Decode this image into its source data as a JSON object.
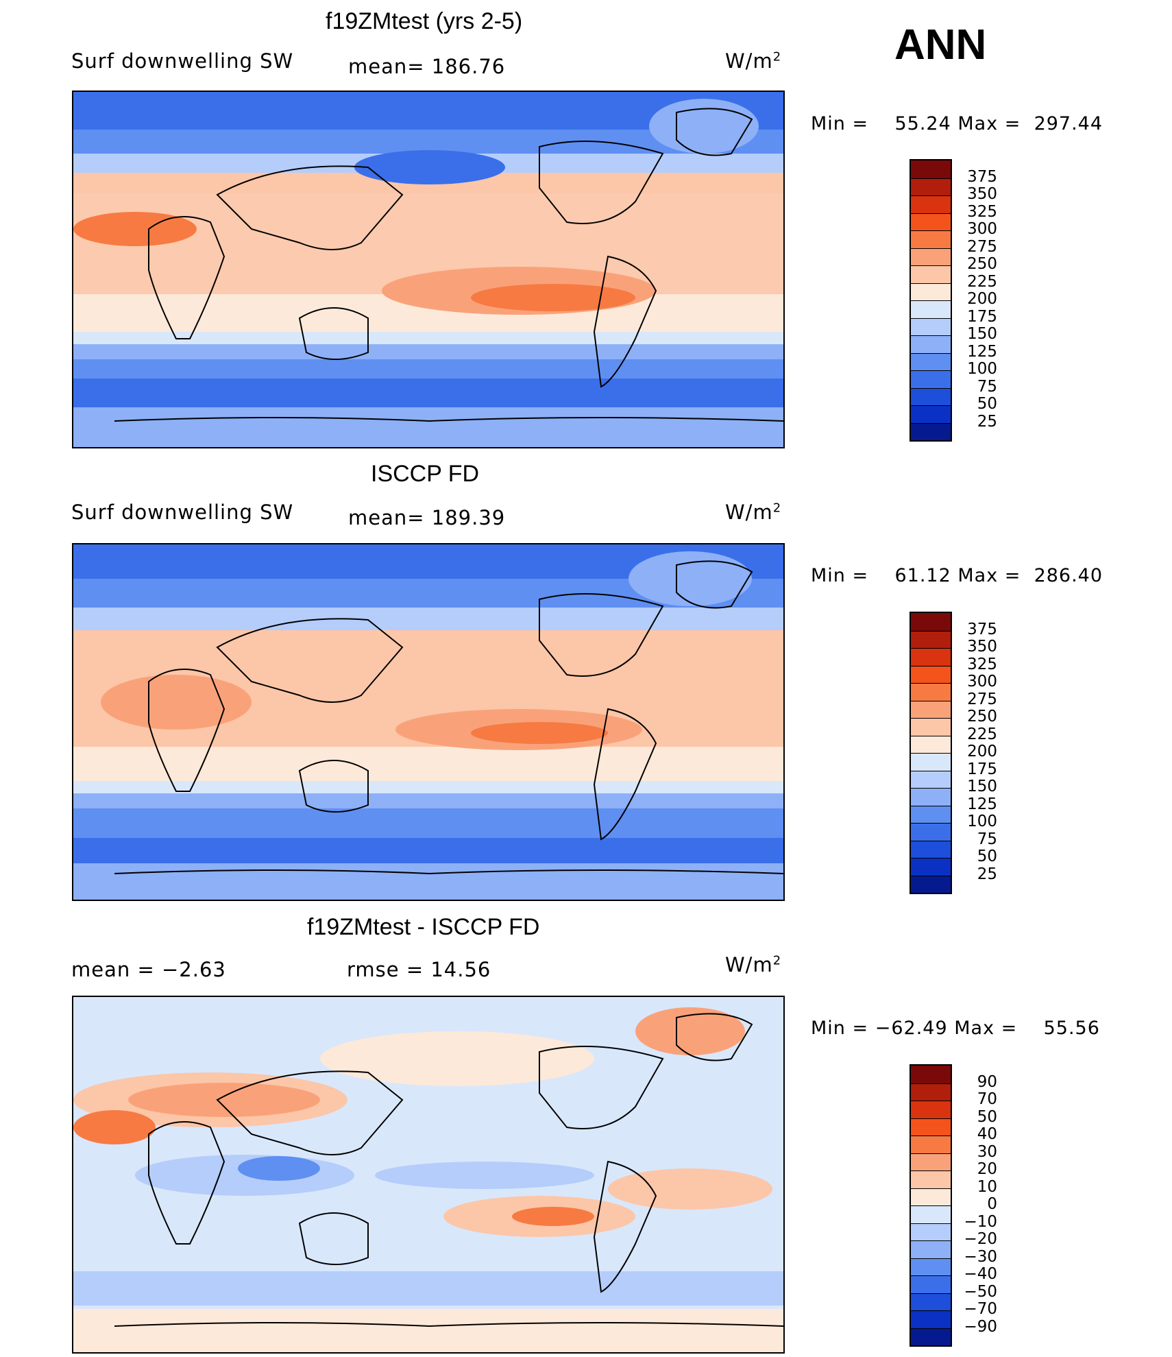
{
  "season": "ANN",
  "units": "W/m",
  "units_sup": "2",
  "panels": [
    {
      "title": "f19ZMtest (yrs 2-5)",
      "left_label": "Surf  downwelling  SW",
      "stat_label": "mean=  186.76",
      "min_label": "Min  =",
      "min_value": "55.24",
      "max_label": "Max  =",
      "max_value": "297.44"
    },
    {
      "title": "ISCCP FD",
      "left_label": "Surf  downwelling  SW",
      "stat_label": "mean=  189.39",
      "min_label": "Min  =",
      "min_value": "61.12",
      "max_label": "Max  =",
      "max_value": "286.40"
    },
    {
      "title": "f19ZMtest - ISCCP FD",
      "left_label": "mean  =     −2.63",
      "stat_label": "rmse  =     14.56",
      "min_label": "Min  =",
      "min_value": "−62.49",
      "max_label": "Max  =",
      "max_value": "55.56"
    }
  ],
  "colorbar_abs": {
    "labels": [
      "375",
      "350",
      "325",
      "300",
      "275",
      "250",
      "225",
      "200",
      "175",
      "150",
      "125",
      "100",
      "75",
      "50",
      "25"
    ],
    "colors": [
      "#7a0a0a",
      "#b11f0c",
      "#d9330f",
      "#f4541c",
      "#f77a43",
      "#f9a27a",
      "#fcc6a8",
      "#fde9d9",
      "#d9e7fb",
      "#b4cdfa",
      "#8db0f7",
      "#5f8ff1",
      "#3a6fe9",
      "#1d4fdb",
      "#0b31c4",
      "#061a8f"
    ]
  },
  "colorbar_diff": {
    "labels": [
      "90",
      "70",
      "50",
      "40",
      "30",
      "20",
      "10",
      "0",
      "−10",
      "−20",
      "−30",
      "−40",
      "−50",
      "−70",
      "−90"
    ],
    "colors": [
      "#7a0a0a",
      "#b11f0c",
      "#d9330f",
      "#f4541c",
      "#f77a43",
      "#f9a27a",
      "#fcc6a8",
      "#fde9d9",
      "#d9e7fb",
      "#b4cdfa",
      "#8db0f7",
      "#5f8ff1",
      "#3a6fe9",
      "#1d4fdb",
      "#0b31c4",
      "#061a8f"
    ]
  }
}
